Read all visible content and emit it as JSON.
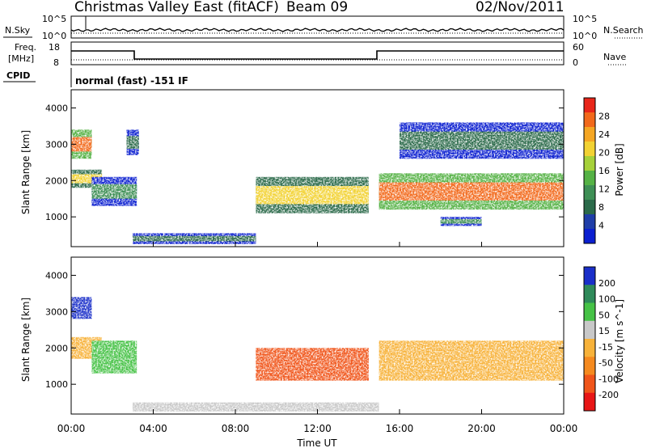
{
  "header": {
    "title": "Christmas Valley East (fitACF)",
    "beam": "Beam 09",
    "date": "02/Nov/2011"
  },
  "noise_panel": {
    "left_label": "N.Sky",
    "left_ticks": [
      "10^5",
      "10^0"
    ],
    "right_label": "N.Search",
    "right_ticks": [
      "10^5",
      "10^0"
    ]
  },
  "freq_panel": {
    "left_label_line1": "Freq.",
    "left_label_line2": "[MHz]",
    "left_ticks": [
      "18",
      "8"
    ],
    "right_label": "Nave",
    "right_ticks": [
      "60",
      "0"
    ]
  },
  "cpid_panel": {
    "label": "CPID",
    "value": "normal (fast) -151 IF"
  },
  "power_panel": {
    "ylabel": "Slant Range [km]",
    "yticks": [
      "4000",
      "3000",
      "2000",
      "1000"
    ],
    "colorbar_label": "Power [dB]",
    "colorbar_ticks": [
      "28",
      "24",
      "20",
      "16",
      "12",
      "8",
      "4"
    ],
    "colors": [
      "#0b1fd0",
      "#1f3ea8",
      "#2b6a4a",
      "#3e8f55",
      "#55b245",
      "#a6d13a",
      "#f2d233",
      "#f5a623",
      "#f2691b",
      "#e8261a"
    ]
  },
  "velocity_panel": {
    "ylabel": "Slant Range [km]",
    "yticks": [
      "4000",
      "3000",
      "2000",
      "1000"
    ],
    "colorbar_label": "Velocity [m s^-1]",
    "colorbar_ticks": [
      "200",
      "100",
      "50",
      "15",
      "-15",
      "-50",
      "-100",
      "-200"
    ],
    "colors": [
      "#1a2fc9",
      "#2f8a5a",
      "#46c246",
      "#c8c8c8",
      "#f7b23a",
      "#f58a1f",
      "#f0551a",
      "#e81616"
    ]
  },
  "xaxis": {
    "label": "Time UT",
    "ticks": [
      "00:00",
      "04:00",
      "08:00",
      "12:00",
      "16:00",
      "20:00",
      "00:00"
    ]
  },
  "chart_data": {
    "type": "heatmap",
    "title": "Christmas Valley East (fitACF)",
    "xlabel": "Time UT",
    "ylabel": "Slant Range [km]",
    "xlim": [
      "00:00",
      "24:00"
    ],
    "ylim": [
      180,
      4500
    ],
    "panels": [
      {
        "name": "Power [dB]",
        "range": [
          0,
          30
        ],
        "regions": [
          {
            "t_start": 0.0,
            "t_end": 1.0,
            "r_low": 2600,
            "r_high": 3400,
            "level": 26
          },
          {
            "t_start": 0.0,
            "t_end": 1.5,
            "r_low": 1800,
            "r_high": 2300,
            "level": 20
          },
          {
            "t_start": 1.0,
            "t_end": 3.2,
            "r_low": 1300,
            "r_high": 2100,
            "level": 10
          },
          {
            "t_start": 2.7,
            "t_end": 3.3,
            "r_low": 2700,
            "r_high": 3400,
            "level": 8
          },
          {
            "t_start": 3.0,
            "t_end": 9.0,
            "r_low": 250,
            "r_high": 550,
            "level": 8
          },
          {
            "t_start": 9.0,
            "t_end": 14.5,
            "r_low": 1100,
            "r_high": 2100,
            "level": 18
          },
          {
            "t_start": 15.0,
            "t_end": 24.0,
            "r_low": 1200,
            "r_high": 2200,
            "level": 24
          },
          {
            "t_start": 18.0,
            "t_end": 20.0,
            "r_low": 750,
            "r_high": 1000,
            "level": 10
          },
          {
            "t_start": 16.0,
            "t_end": 24.0,
            "r_low": 2600,
            "r_high": 3600,
            "level": 6
          }
        ]
      },
      {
        "name": "Velocity [m s^-1]",
        "range": [
          -200,
          200
        ],
        "regions": [
          {
            "t_start": 0.0,
            "t_end": 1.0,
            "r_low": 2800,
            "r_high": 3400,
            "level": 200
          },
          {
            "t_start": 0.0,
            "t_end": 1.5,
            "r_low": 1700,
            "r_high": 2300,
            "level": 0
          },
          {
            "t_start": 1.0,
            "t_end": 3.2,
            "r_low": 1300,
            "r_high": 2200,
            "level": 60
          },
          {
            "t_start": 3.0,
            "t_end": 15.0,
            "r_low": 250,
            "r_high": 500,
            "level": 20
          },
          {
            "t_start": 9.0,
            "t_end": 14.5,
            "r_low": 1100,
            "r_high": 2000,
            "level": -100
          },
          {
            "t_start": 15.0,
            "t_end": 24.0,
            "r_low": 1100,
            "r_high": 2200,
            "level": 0
          }
        ]
      }
    ]
  }
}
